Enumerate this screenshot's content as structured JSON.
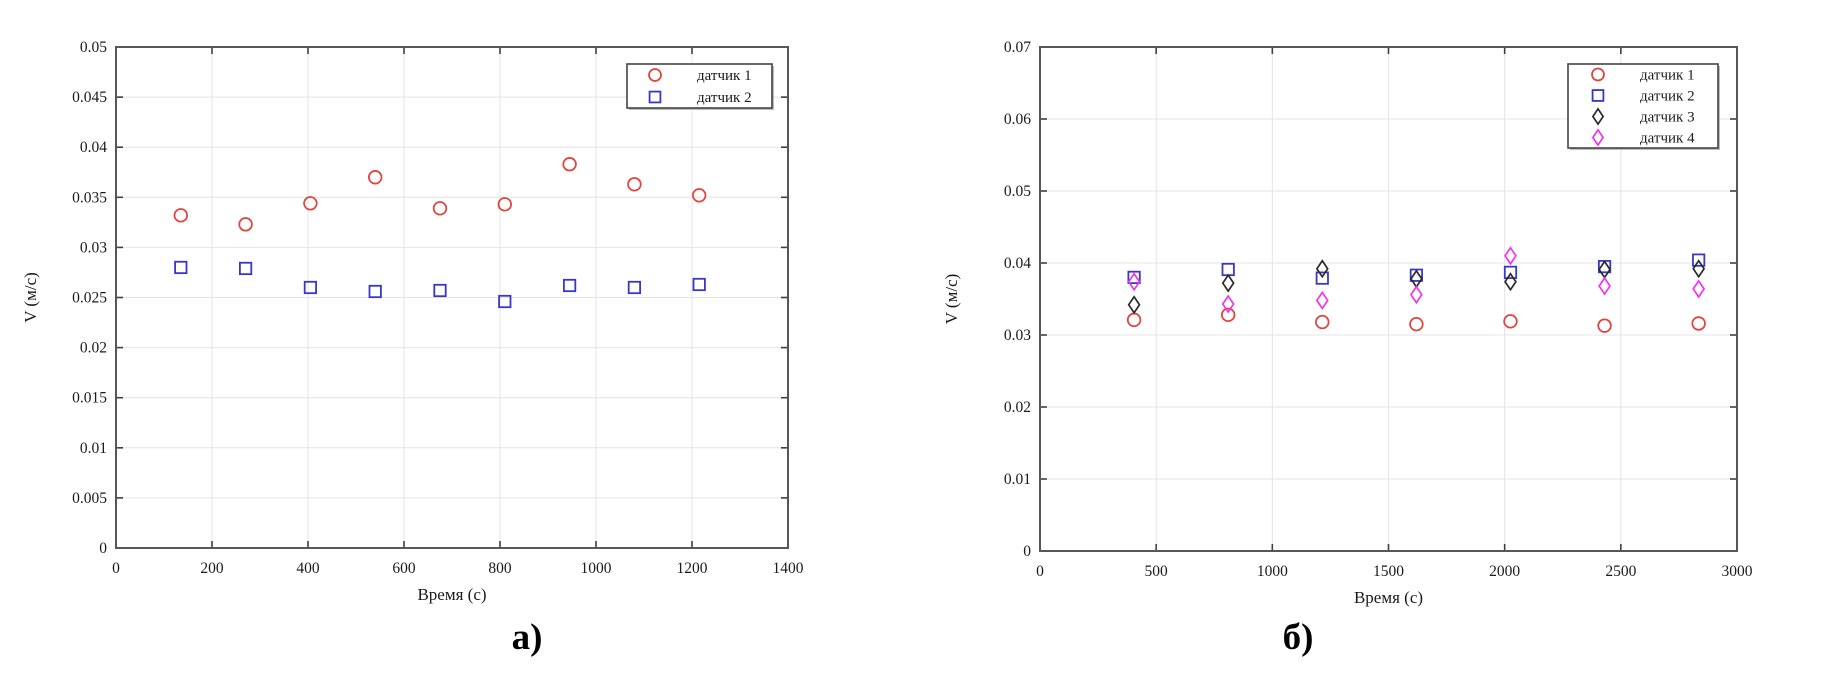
{
  "figure": {
    "background": "#ffffff",
    "text_color": "#1a1a1a",
    "grid_color": "#e4e4e4",
    "border_color": "#575757",
    "tick_color": "#3f3f3f"
  },
  "captions": {
    "a": "а)",
    "b": "б)"
  },
  "chart_data": [
    {
      "id": "chart-a",
      "type": "scatter",
      "title": "",
      "xlabel": "Время (с)",
      "ylabel": "V (м/с)",
      "xlim": [
        0,
        1400
      ],
      "ylim": [
        0,
        0.05
      ],
      "xticks": [
        0,
        200,
        400,
        600,
        800,
        1000,
        1200,
        1400
      ],
      "yticks": [
        0,
        0.005,
        0.01,
        0.015,
        0.02,
        0.025,
        0.03,
        0.035,
        0.04,
        0.045,
        0.05
      ],
      "grid": true,
      "legend_position": "northeast",
      "x": [
        135,
        270,
        405,
        540,
        675,
        810,
        945,
        1080,
        1215
      ],
      "series": [
        {
          "name": "датчик 1",
          "marker": "circle",
          "color": "#e0453f",
          "values": [
            0.0332,
            0.0323,
            0.0344,
            0.037,
            0.0339,
            0.0343,
            0.0383,
            0.0363,
            0.0352
          ]
        },
        {
          "name": "датчик 2",
          "marker": "square",
          "color": "#3838c8",
          "values": [
            0.028,
            0.0279,
            0.026,
            0.0256,
            0.0257,
            0.0246,
            0.0262,
            0.026,
            0.0263
          ]
        }
      ]
    },
    {
      "id": "chart-b",
      "type": "scatter",
      "title": "",
      "xlabel": "Время (с)",
      "ylabel": "V (м/с)",
      "xlim": [
        0,
        3000
      ],
      "ylim": [
        0,
        0.07
      ],
      "xticks": [
        0,
        500,
        1000,
        1500,
        2000,
        2500,
        3000
      ],
      "yticks": [
        0,
        0.01,
        0.02,
        0.03,
        0.04,
        0.05,
        0.06,
        0.07
      ],
      "grid": true,
      "legend_position": "northeast",
      "x": [
        405,
        810,
        1215,
        1620,
        2025,
        2430,
        2835
      ],
      "series": [
        {
          "name": "датчик 1",
          "marker": "circle",
          "color": "#e0453f",
          "values": [
            0.0321,
            0.0328,
            0.0318,
            0.0315,
            0.0319,
            0.0313,
            0.0316
          ]
        },
        {
          "name": "датчик 2",
          "marker": "square",
          "color": "#3838c8",
          "values": [
            0.038,
            0.0391,
            0.0379,
            0.0383,
            0.0387,
            0.0395,
            0.0404
          ]
        },
        {
          "name": "датчик 3",
          "marker": "diamond",
          "color": "#2b2b2b",
          "values": [
            0.0342,
            0.0372,
            0.0392,
            0.0378,
            0.0374,
            0.0391,
            0.0392
          ]
        },
        {
          "name": "датчик 4",
          "marker": "diamond",
          "color": "#ef33ef",
          "values": [
            0.0374,
            0.0343,
            0.0348,
            0.0356,
            0.041,
            0.0368,
            0.0364
          ]
        }
      ]
    }
  ]
}
